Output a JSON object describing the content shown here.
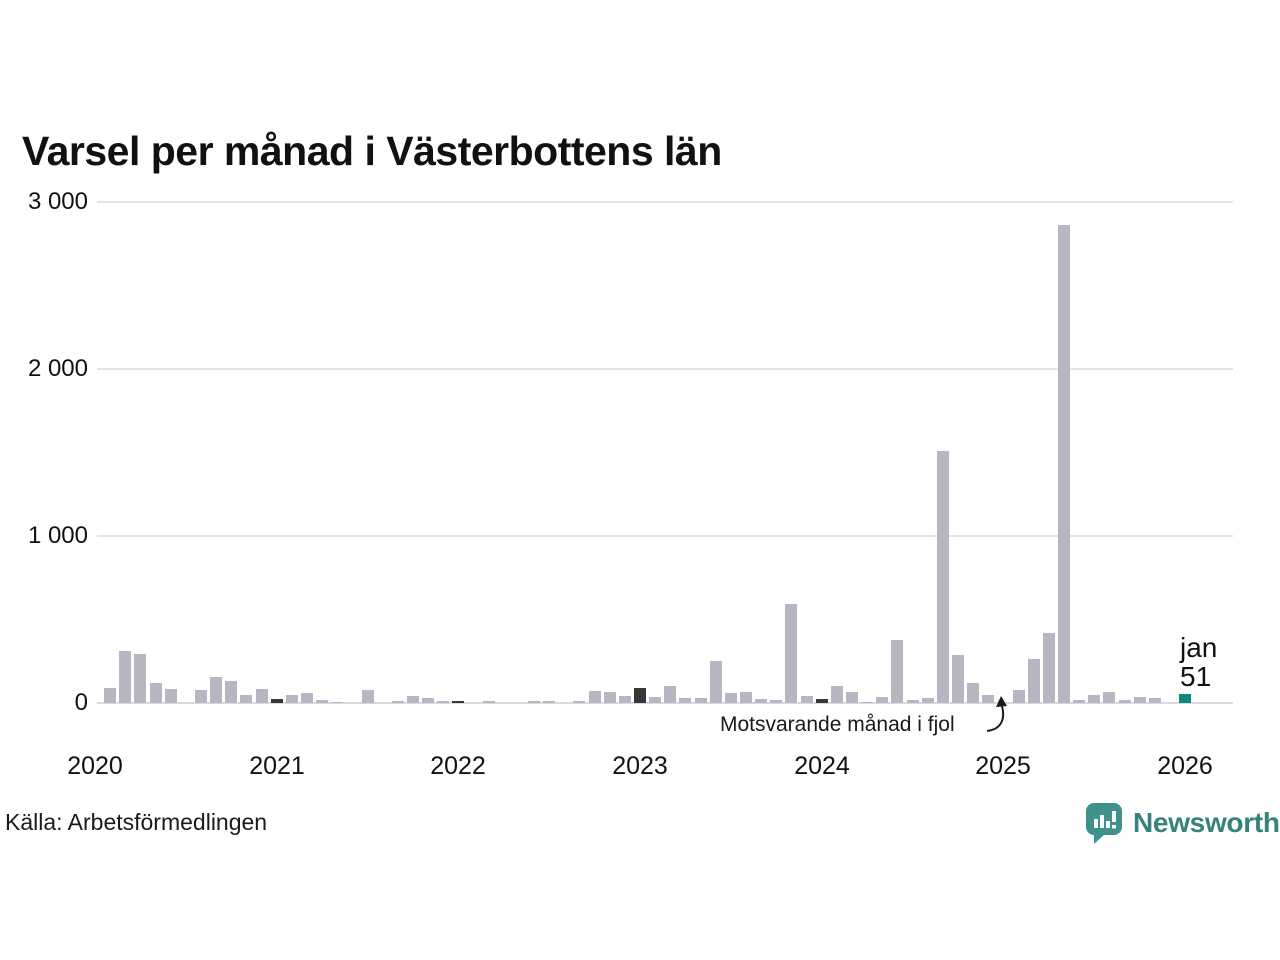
{
  "title": "Varsel per månad i Västerbottens län",
  "source": "Källa: Arbetsförmedlingen",
  "brand": {
    "name": "Newsworthy"
  },
  "annotation": {
    "text": "Motsvarande månad i fjol",
    "points_to": "2025-01"
  },
  "latest_label": {
    "month": "jan",
    "value": "51"
  },
  "y_axis": {
    "ticks": [
      {
        "label": "0",
        "value": 0
      },
      {
        "label": "1 000",
        "value": 1000
      },
      {
        "label": "2 000",
        "value": 2000
      },
      {
        "label": "3 000",
        "value": 3000
      }
    ],
    "max": 3000
  },
  "x_axis": {
    "ticks": [
      {
        "label": "2020",
        "month_index": 0
      },
      {
        "label": "2021",
        "month_index": 12
      },
      {
        "label": "2022",
        "month_index": 24
      },
      {
        "label": "2023",
        "month_index": 36
      },
      {
        "label": "2024",
        "month_index": 48
      },
      {
        "label": "2025",
        "month_index": 60
      },
      {
        "label": "2026",
        "month_index": 72
      }
    ]
  },
  "colors": {
    "bar": "#b9b6c4",
    "january_bar": "#383838",
    "latest_bar": "#0c897c",
    "gridline": "#e3e3e8",
    "brand_teal": "#36827d",
    "brand_icon": "#3f928b"
  },
  "chart_data": {
    "type": "bar",
    "title": "Varsel per månad i Västerbottens län",
    "xlabel": "",
    "ylabel": "",
    "ylim": [
      0,
      3000
    ],
    "grid": "horizontal",
    "x": [
      "2020-01",
      "2020-02",
      "2020-03",
      "2020-04",
      "2020-05",
      "2020-06",
      "2020-07",
      "2020-08",
      "2020-09",
      "2020-10",
      "2020-11",
      "2020-12",
      "2021-01",
      "2021-02",
      "2021-03",
      "2021-04",
      "2021-05",
      "2021-06",
      "2021-07",
      "2021-08",
      "2021-09",
      "2021-10",
      "2021-11",
      "2021-12",
      "2022-01",
      "2022-02",
      "2022-03",
      "2022-04",
      "2022-05",
      "2022-06",
      "2022-07",
      "2022-08",
      "2022-09",
      "2022-10",
      "2022-11",
      "2022-12",
      "2023-01",
      "2023-02",
      "2023-03",
      "2023-04",
      "2023-05",
      "2023-06",
      "2023-07",
      "2023-08",
      "2023-09",
      "2023-10",
      "2023-11",
      "2023-12",
      "2024-01",
      "2024-02",
      "2024-03",
      "2024-04",
      "2024-05",
      "2024-06",
      "2024-07",
      "2024-08",
      "2024-09",
      "2024-10",
      "2024-11",
      "2024-12",
      "2025-01",
      "2025-02",
      "2025-03",
      "2025-04",
      "2025-05",
      "2025-06",
      "2025-07",
      "2025-08",
      "2025-09",
      "2025-10",
      "2025-11",
      "2025-12",
      "2026-01"
    ],
    "values": [
      0,
      90,
      310,
      295,
      120,
      85,
      0,
      80,
      155,
      130,
      50,
      85,
      22,
      50,
      62,
      16,
      8,
      0,
      80,
      0,
      10,
      40,
      32,
      12,
      12,
      0,
      10,
      0,
      0,
      10,
      10,
      0,
      12,
      70,
      65,
      40,
      90,
      35,
      100,
      30,
      30,
      250,
      60,
      65,
      25,
      15,
      590,
      40,
      25,
      100,
      65,
      8,
      35,
      375,
      15,
      30,
      1510,
      285,
      120,
      45,
      0,
      75,
      265,
      420,
      2860,
      20,
      45,
      65,
      20,
      35,
      30,
      0,
      51
    ],
    "highlights": {
      "january_bars": "dark",
      "latest_bar": {
        "x": "2026-01",
        "value": 51,
        "color": "teal",
        "label": "jan 51"
      }
    },
    "legend": "none"
  }
}
